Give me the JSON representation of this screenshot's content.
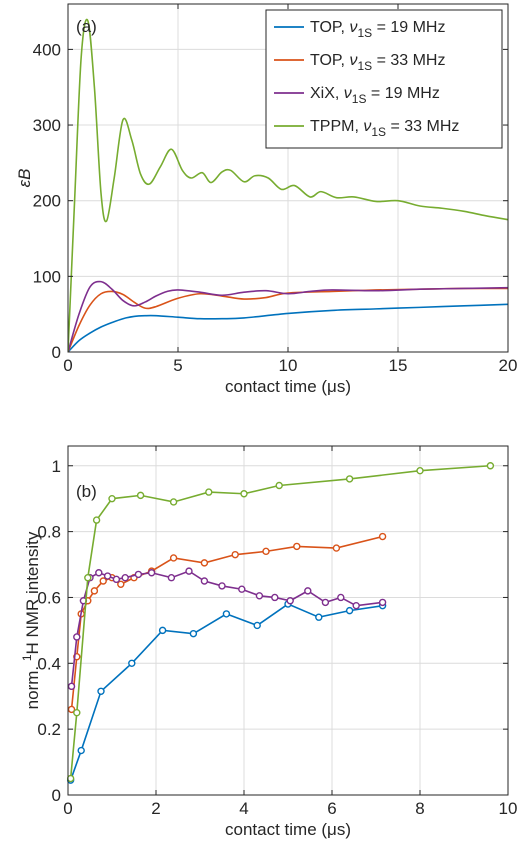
{
  "chart_data": [
    {
      "type": "line",
      "panel_label": "(a)",
      "xlabel": "contact time (μs)",
      "ylabel": "εB",
      "xlim": [
        0,
        20
      ],
      "ylim": [
        0,
        460
      ],
      "xticks": [
        0,
        5,
        10,
        15,
        20
      ],
      "yticks": [
        0,
        100,
        200,
        300,
        400
      ],
      "grid": true,
      "legend": "top-right",
      "series": [
        {
          "name": "TOP, ν1S = 19 MHz",
          "legend_prefix": "TOP, ",
          "legend_nu": "ν",
          "legend_sub": "1S",
          "legend_suffix": " = 19 MHz",
          "color": "#0072BD",
          "x": [
            0,
            0.5,
            1,
            1.5,
            2,
            2.5,
            3,
            3.5,
            4,
            5,
            6,
            7,
            8,
            10,
            12,
            14,
            16,
            18,
            20
          ],
          "y": [
            0,
            15,
            25,
            33,
            39,
            44,
            47,
            48,
            48,
            46,
            44,
            44,
            45,
            51,
            55,
            57,
            59,
            61,
            63
          ]
        },
        {
          "name": "TOP, ν1S = 33 MHz",
          "legend_prefix": "TOP, ",
          "legend_nu": "ν",
          "legend_sub": "1S",
          "legend_suffix": " = 33 MHz",
          "color": "#D95319",
          "x": [
            0,
            0.5,
            1,
            1.5,
            2,
            2.5,
            3,
            3.5,
            4,
            5,
            6,
            7,
            8,
            9,
            10,
            12,
            14,
            16,
            18,
            20
          ],
          "y": [
            0,
            35,
            62,
            77,
            80,
            76,
            66,
            58,
            60,
            71,
            77,
            74,
            70,
            72,
            78,
            80,
            82,
            83,
            84,
            84
          ]
        },
        {
          "name": "XiX, ν1S = 19 MHz",
          "legend_prefix": "XiX, ",
          "legend_nu": "ν",
          "legend_sub": "1S",
          "legend_suffix": " = 19 MHz",
          "color": "#7E2F8E",
          "x": [
            0,
            0.5,
            1,
            1.5,
            2,
            2.5,
            3,
            3.5,
            4,
            4.5,
            5,
            6,
            7,
            8,
            9,
            10,
            11,
            12,
            14,
            16,
            18,
            20
          ],
          "y": [
            0,
            50,
            86,
            93,
            83,
            68,
            61,
            66,
            74,
            80,
            82,
            79,
            75,
            79,
            81,
            77,
            80,
            82,
            81,
            83,
            84,
            85
          ]
        },
        {
          "name": "TPPM, ν1S = 33 MHz",
          "legend_prefix": "TPPM, ",
          "legend_nu": "ν",
          "legend_sub": "1S",
          "legend_suffix": " = 33 MHz",
          "color": "#77AC30",
          "x": [
            0,
            0.3,
            0.6,
            0.9,
            1.2,
            1.5,
            1.75,
            2.1,
            2.5,
            2.9,
            3.3,
            3.7,
            4.2,
            4.7,
            5.2,
            5.6,
            6.1,
            6.5,
            7.0,
            7.4,
            8.0,
            8.5,
            9.1,
            9.7,
            10.3,
            11.0,
            11.5,
            12.2,
            13.0,
            14.0,
            15.0,
            16.0,
            17.0,
            18.0,
            19.0,
            20.0
          ],
          "y": [
            0,
            200,
            390,
            438,
            350,
            210,
            173,
            230,
            307,
            280,
            235,
            222,
            245,
            268,
            240,
            230,
            237,
            224,
            238,
            240,
            225,
            233,
            230,
            215,
            220,
            205,
            212,
            204,
            205,
            199,
            200,
            193,
            190,
            186,
            180,
            175
          ]
        }
      ]
    },
    {
      "type": "line",
      "panel_label": "(b)",
      "xlabel": "contact time (μs)",
      "ylabel": "norm. 1H NMR intensity",
      "ylabel_prefix": "norm. ",
      "ylabel_sup": "1",
      "ylabel_suffix": "H NMR intensity",
      "xlim": [
        0,
        10
      ],
      "ylim": [
        0,
        1.06
      ],
      "xticks": [
        0,
        2,
        4,
        6,
        8,
        10
      ],
      "yticks": [
        0,
        0.2,
        0.4,
        0.6,
        0.8,
        1
      ],
      "grid": true,
      "markers": "open-circle",
      "series": [
        {
          "color": "#0072BD",
          "x": [
            0.06,
            0.3,
            0.75,
            1.45,
            2.15,
            2.85,
            3.6,
            4.3,
            5.0,
            5.7,
            6.4,
            7.15
          ],
          "y": [
            0.045,
            0.135,
            0.315,
            0.4,
            0.5,
            0.49,
            0.55,
            0.515,
            0.58,
            0.54,
            0.56,
            0.575
          ]
        },
        {
          "color": "#D95319",
          "x": [
            0.08,
            0.2,
            0.3,
            0.45,
            0.6,
            0.8,
            1.0,
            1.2,
            1.5,
            1.9,
            2.4,
            3.1,
            3.8,
            4.5,
            5.2,
            6.1,
            7.15
          ],
          "y": [
            0.26,
            0.42,
            0.55,
            0.59,
            0.62,
            0.65,
            0.66,
            0.64,
            0.66,
            0.68,
            0.72,
            0.705,
            0.73,
            0.74,
            0.755,
            0.75,
            0.785
          ]
        },
        {
          "color": "#7E2F8E",
          "x": [
            0.08,
            0.2,
            0.35,
            0.5,
            0.7,
            0.9,
            1.1,
            1.3,
            1.6,
            1.9,
            2.35,
            2.75,
            3.1,
            3.5,
            3.95,
            4.35,
            4.7,
            5.05,
            5.45,
            5.85,
            6.2,
            6.55,
            7.15
          ],
          "y": [
            0.33,
            0.48,
            0.59,
            0.66,
            0.675,
            0.665,
            0.655,
            0.66,
            0.67,
            0.675,
            0.66,
            0.68,
            0.65,
            0.635,
            0.625,
            0.605,
            0.6,
            0.59,
            0.62,
            0.585,
            0.6,
            0.575,
            0.585
          ]
        },
        {
          "color": "#77AC30",
          "x": [
            0.06,
            0.2,
            0.45,
            0.65,
            1.0,
            1.65,
            2.4,
            3.2,
            4.0,
            4.8,
            6.4,
            8.0,
            9.6
          ],
          "y": [
            0.05,
            0.25,
            0.66,
            0.835,
            0.9,
            0.91,
            0.89,
            0.92,
            0.915,
            0.94,
            0.96,
            0.985,
            1.0
          ]
        }
      ]
    }
  ]
}
